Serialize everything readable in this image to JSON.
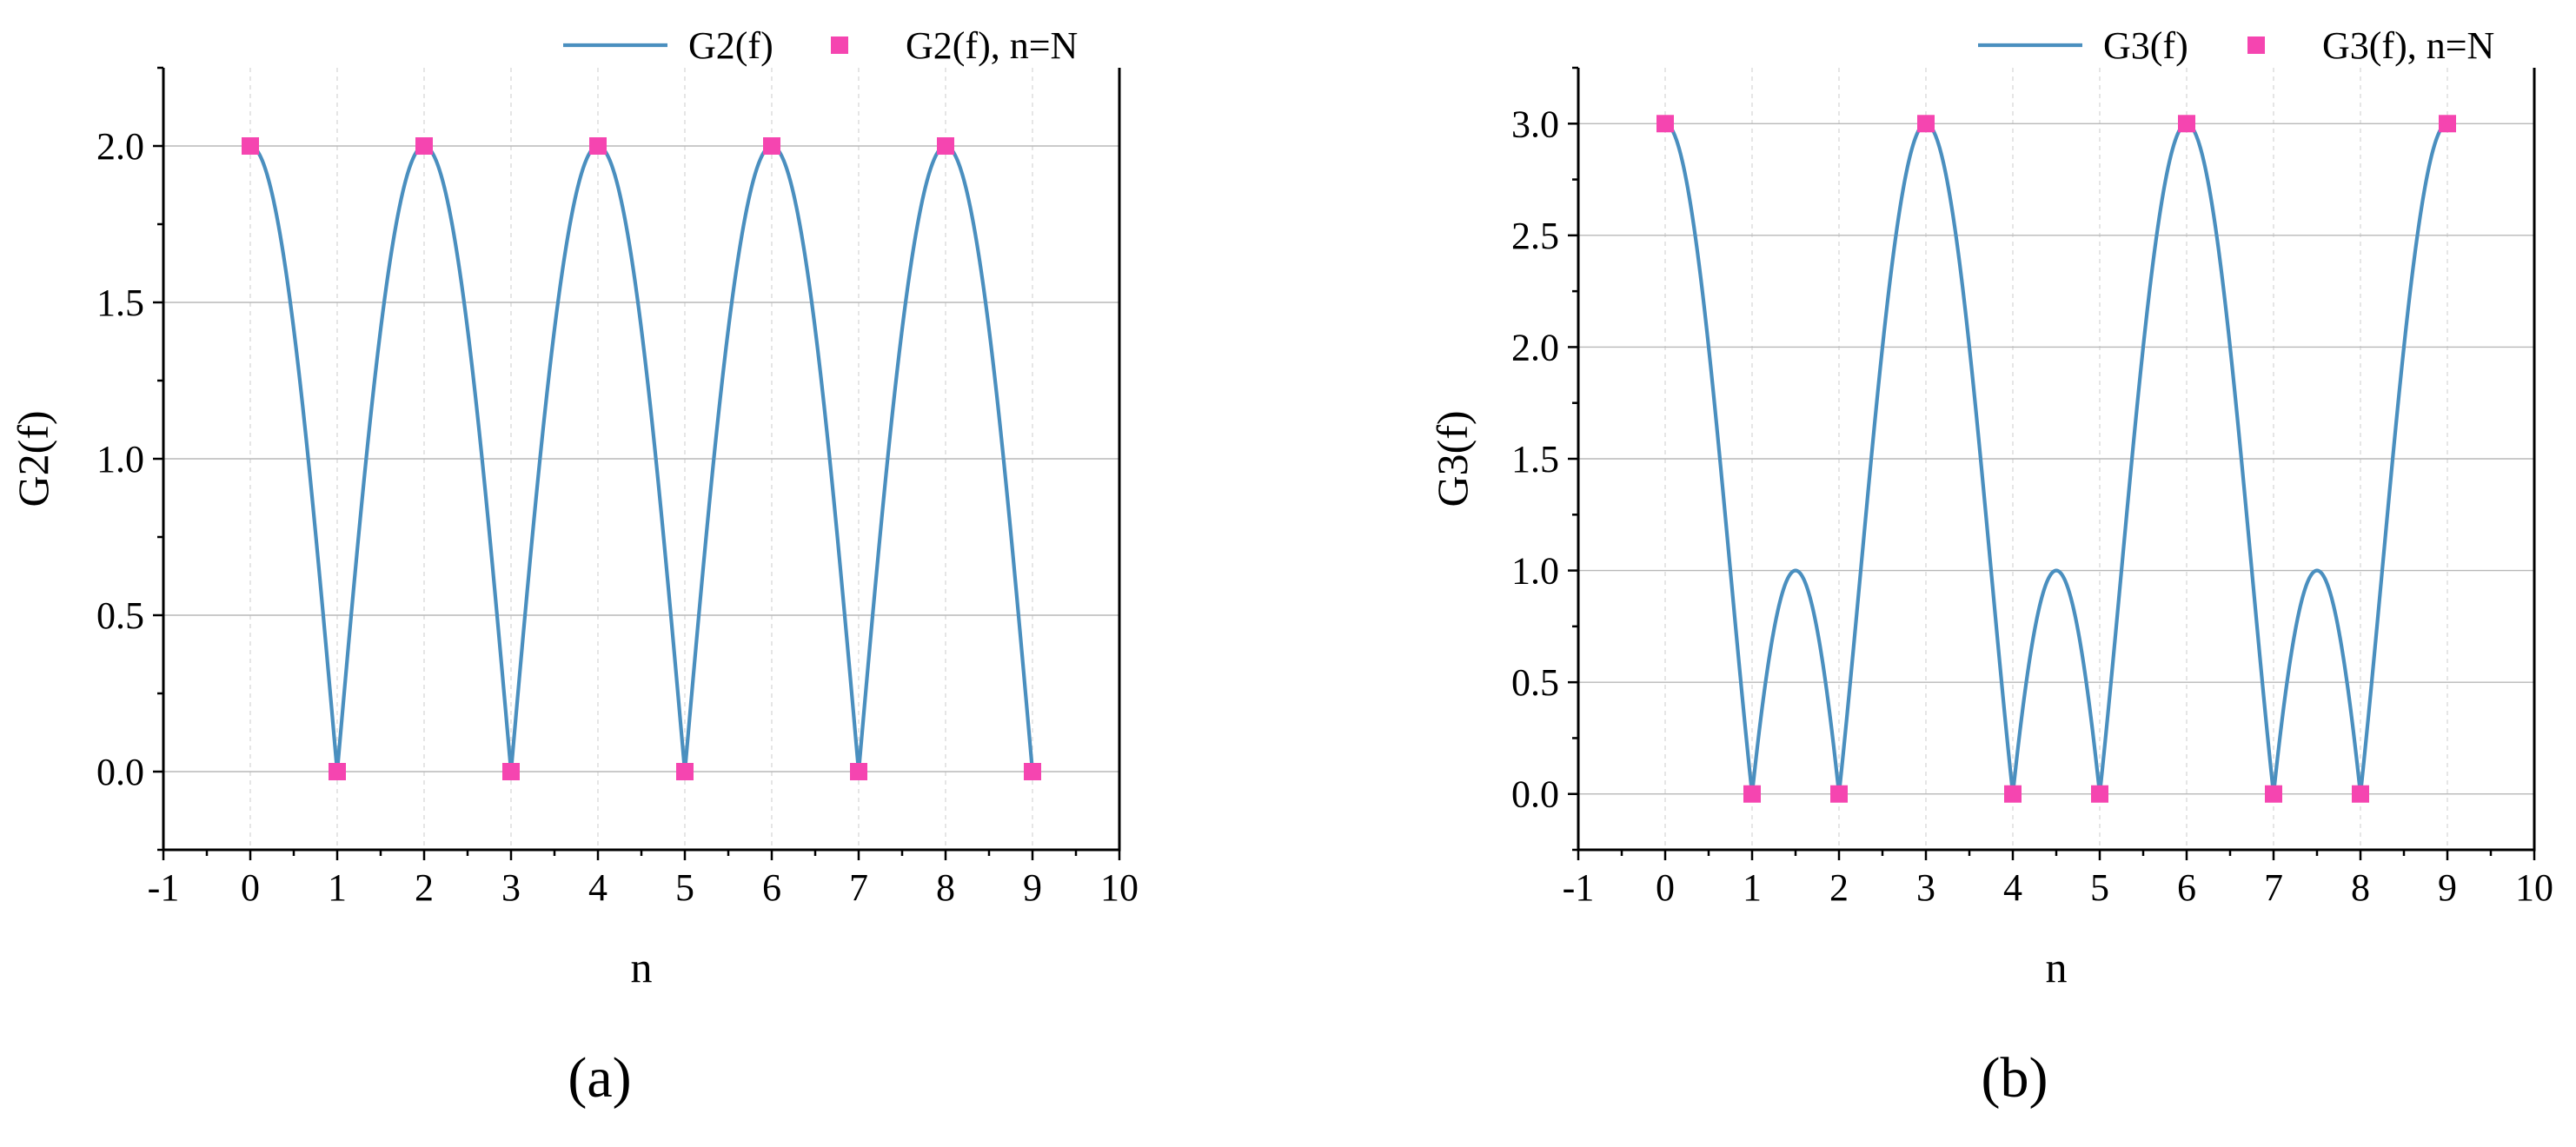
{
  "chart_data": [
    {
      "type": "line",
      "panel_label": "(a)",
      "xlabel": "n",
      "ylabel": "G2(f)",
      "xlim": [
        -1,
        10
      ],
      "ylim": [
        -0.25,
        2.25
      ],
      "xticks": [
        -1,
        0,
        1,
        2,
        3,
        4,
        5,
        6,
        7,
        8,
        9,
        10
      ],
      "xtick_labels": [
        "-1",
        "0",
        "1",
        "2",
        "3",
        "4",
        "5",
        "6",
        "7",
        "8",
        "9",
        "10"
      ],
      "yticks": [
        0.0,
        0.5,
        1.0,
        1.5,
        2.0
      ],
      "ytick_labels": [
        "0.0",
        "0.5",
        "1.0",
        "1.5",
        "2.0"
      ],
      "grid": true,
      "legend_position": "top-right",
      "N": 2,
      "x_range": [
        0,
        9
      ],
      "series": [
        {
          "name": "G2(f)",
          "kind": "line",
          "color": "#4a8fbf",
          "formula": "|sin(pi*N*n/N... )| = |sin(N*pi*x/2)/sin(pi*x/2)|"
        },
        {
          "name": "G2(f), n=N",
          "kind": "marker",
          "color": "#f545b0",
          "x": [
            0,
            1,
            2,
            3,
            4,
            5,
            6,
            7,
            8,
            9
          ],
          "y": [
            2,
            0,
            2,
            0,
            2,
            0,
            2,
            0,
            2,
            0
          ]
        }
      ]
    },
    {
      "type": "line",
      "panel_label": "(b)",
      "xlabel": "n",
      "ylabel": "G3(f)",
      "xlim": [
        -1,
        10
      ],
      "ylim": [
        -0.25,
        3.25
      ],
      "xticks": [
        -1,
        0,
        1,
        2,
        3,
        4,
        5,
        6,
        7,
        8,
        9,
        10
      ],
      "xtick_labels": [
        "-1",
        "0",
        "1",
        "2",
        "3",
        "4",
        "5",
        "6",
        "7",
        "8",
        "9",
        "10"
      ],
      "yticks": [
        0.0,
        0.5,
        1.0,
        1.5,
        2.0,
        2.5,
        3.0
      ],
      "ytick_labels": [
        "0.0",
        "0.5",
        "1.0",
        "1.5",
        "2.0",
        "2.5",
        "3.0"
      ],
      "grid": true,
      "legend_position": "top-right",
      "N": 3,
      "x_range": [
        0,
        9
      ],
      "series": [
        {
          "name": "G3(f)",
          "kind": "line",
          "color": "#4a8fbf",
          "formula": "|sin(N*pi*x/3)/sin(pi*x/3)|"
        },
        {
          "name": "G3(f), n=N",
          "kind": "marker",
          "color": "#f545b0",
          "x": [
            0,
            1,
            2,
            3,
            4,
            5,
            6,
            7,
            8,
            9
          ],
          "y": [
            3,
            0,
            0,
            3,
            0,
            0,
            3,
            0,
            0,
            3
          ]
        }
      ]
    }
  ]
}
